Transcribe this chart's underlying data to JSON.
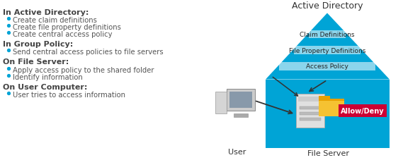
{
  "background_color": "#ffffff",
  "left_text": {
    "sections": [
      {
        "header": "In Active Directory:",
        "bullets": [
          "Create claim definitions",
          "Create file property definitions",
          "Create central access policy"
        ]
      },
      {
        "header": "In Group Policy:",
        "bullets": [
          "Send central access policies to file servers"
        ]
      },
      {
        "header": "On File Server:",
        "bullets": [
          "Apply access policy to the shared folder",
          "Identify information"
        ]
      },
      {
        "header": "On User Computer:",
        "bullets": [
          "User tries to access information"
        ]
      }
    ]
  },
  "diagram": {
    "active_directory_label": "Active Directory",
    "triangle_color": "#00a4d6",
    "triangle_labels": [
      "Claim Definitions",
      "File Property Definitions",
      "Access Policy"
    ],
    "file_server_box_color": "#00a4d6",
    "allow_deny_color": "#cc0033",
    "allow_deny_text": "Allow/Deny",
    "allow_deny_text_color": "#ffffff",
    "user_label": "User",
    "file_server_label": "File Server",
    "label_color": "#333333",
    "header_color": "#444444",
    "bullet_color": "#00a4d6",
    "bullet_text_color": "#555555"
  }
}
